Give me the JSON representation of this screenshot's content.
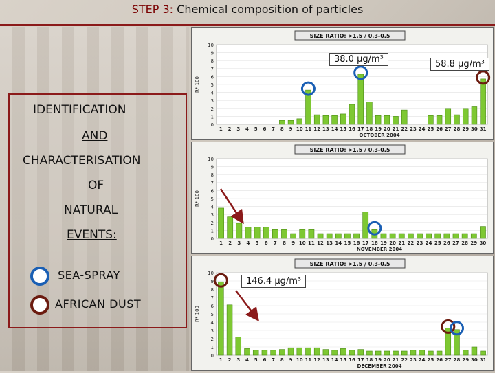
{
  "title": {
    "step": "STEP 3:",
    "rest": "Chemical composition of particles"
  },
  "side": {
    "lines": [
      "IDENTIFICATION",
      "AND",
      "CHARACTERISATION",
      "OF",
      "NATURAL",
      "EVENTS:"
    ]
  },
  "legend": [
    {
      "label": "SEA-SPRAY",
      "color": "#1a5fb4"
    },
    {
      "label": "AFRICAN DUST",
      "color": "#6b1b0f"
    }
  ],
  "annotations": {
    "oct_a": "38.0 μg/m³",
    "oct_b": "58.8 μg/m³",
    "dec_a": "146.4 μg/m³"
  },
  "chart_data": [
    {
      "type": "bar",
      "title": "SIZE RATIO: >1.5 / 0.3-0.5",
      "xlabel": "OCTOBER 2004",
      "ylabel": "R* 100",
      "ylim": [
        0,
        10
      ],
      "categories": [
        "1",
        "2",
        "3",
        "4",
        "5",
        "6",
        "7",
        "8",
        "9",
        "10",
        "11",
        "12",
        "13",
        "14",
        "15",
        "16",
        "17",
        "18",
        "19",
        "20",
        "21",
        "22",
        "23",
        "24",
        "25",
        "26",
        "27",
        "28",
        "29",
        "30",
        "31"
      ],
      "values": [
        0,
        0,
        0,
        0,
        0,
        0,
        0,
        0.5,
        0.5,
        0.7,
        4.3,
        1.2,
        1.1,
        1.1,
        1.3,
        2.5,
        6.3,
        2.8,
        1.1,
        1.1,
        1.0,
        1.8,
        0,
        0,
        1.1,
        1.1,
        2.0,
        1.2,
        2.0,
        2.2,
        5.7
      ],
      "circles": [
        {
          "category": "11",
          "kind": "SEA-SPRAY"
        },
        {
          "category": "17",
          "kind": "SEA-SPRAY"
        },
        {
          "category": "31",
          "kind": "AFRICAN DUST"
        }
      ]
    },
    {
      "type": "bar",
      "title": "SIZE RATIO: >1.5 / 0.3-0.5",
      "xlabel": "NOVEMBER 2004",
      "ylabel": "R* 100",
      "ylim": [
        0,
        10
      ],
      "categories": [
        "1",
        "2",
        "3",
        "4",
        "5",
        "6",
        "7",
        "8",
        "9",
        "10",
        "11",
        "12",
        "13",
        "14",
        "15",
        "16",
        "17",
        "18",
        "19",
        "20",
        "21",
        "22",
        "23",
        "24",
        "25",
        "26",
        "27",
        "28",
        "29",
        "30"
      ],
      "values": [
        3.8,
        2.7,
        1.9,
        1.4,
        1.4,
        1.4,
        1.1,
        1.1,
        0.6,
        1.1,
        1.1,
        0.6,
        0.6,
        0.6,
        0.6,
        0.6,
        3.3,
        1.1,
        0.6,
        0.6,
        0.6,
        0.6,
        0.6,
        0.6,
        0.6,
        0.6,
        0.6,
        0.6,
        0.6,
        1.5
      ],
      "circles": [
        {
          "category": "18",
          "kind": "SEA-SPRAY"
        }
      ]
    },
    {
      "type": "bar",
      "title": "SIZE RATIO: >1.5 / 0.3-0.5",
      "xlabel": "DECEMBER 2004",
      "ylabel": "R* 100",
      "ylim": [
        0,
        10
      ],
      "categories": [
        "1",
        "2",
        "3",
        "4",
        "5",
        "6",
        "7",
        "8",
        "9",
        "10",
        "11",
        "12",
        "13",
        "14",
        "15",
        "16",
        "17",
        "18",
        "19",
        "20",
        "21",
        "22",
        "23",
        "24",
        "25",
        "26",
        "27",
        "28",
        "29",
        "30",
        "31"
      ],
      "values": [
        8.9,
        6.1,
        2.2,
        0.8,
        0.6,
        0.6,
        0.6,
        0.7,
        0.9,
        0.9,
        0.9,
        0.9,
        0.7,
        0.6,
        0.8,
        0.6,
        0.7,
        0.5,
        0.5,
        0.5,
        0.5,
        0.5,
        0.6,
        0.6,
        0.5,
        0.5,
        3.3,
        3.1,
        0.6,
        1.0,
        0.5
      ],
      "circles": [
        {
          "category": "1",
          "kind": "AFRICAN DUST"
        },
        {
          "category": "27",
          "kind": "AFRICAN DUST"
        },
        {
          "category": "28",
          "kind": "SEA-SPRAY"
        }
      ]
    }
  ]
}
